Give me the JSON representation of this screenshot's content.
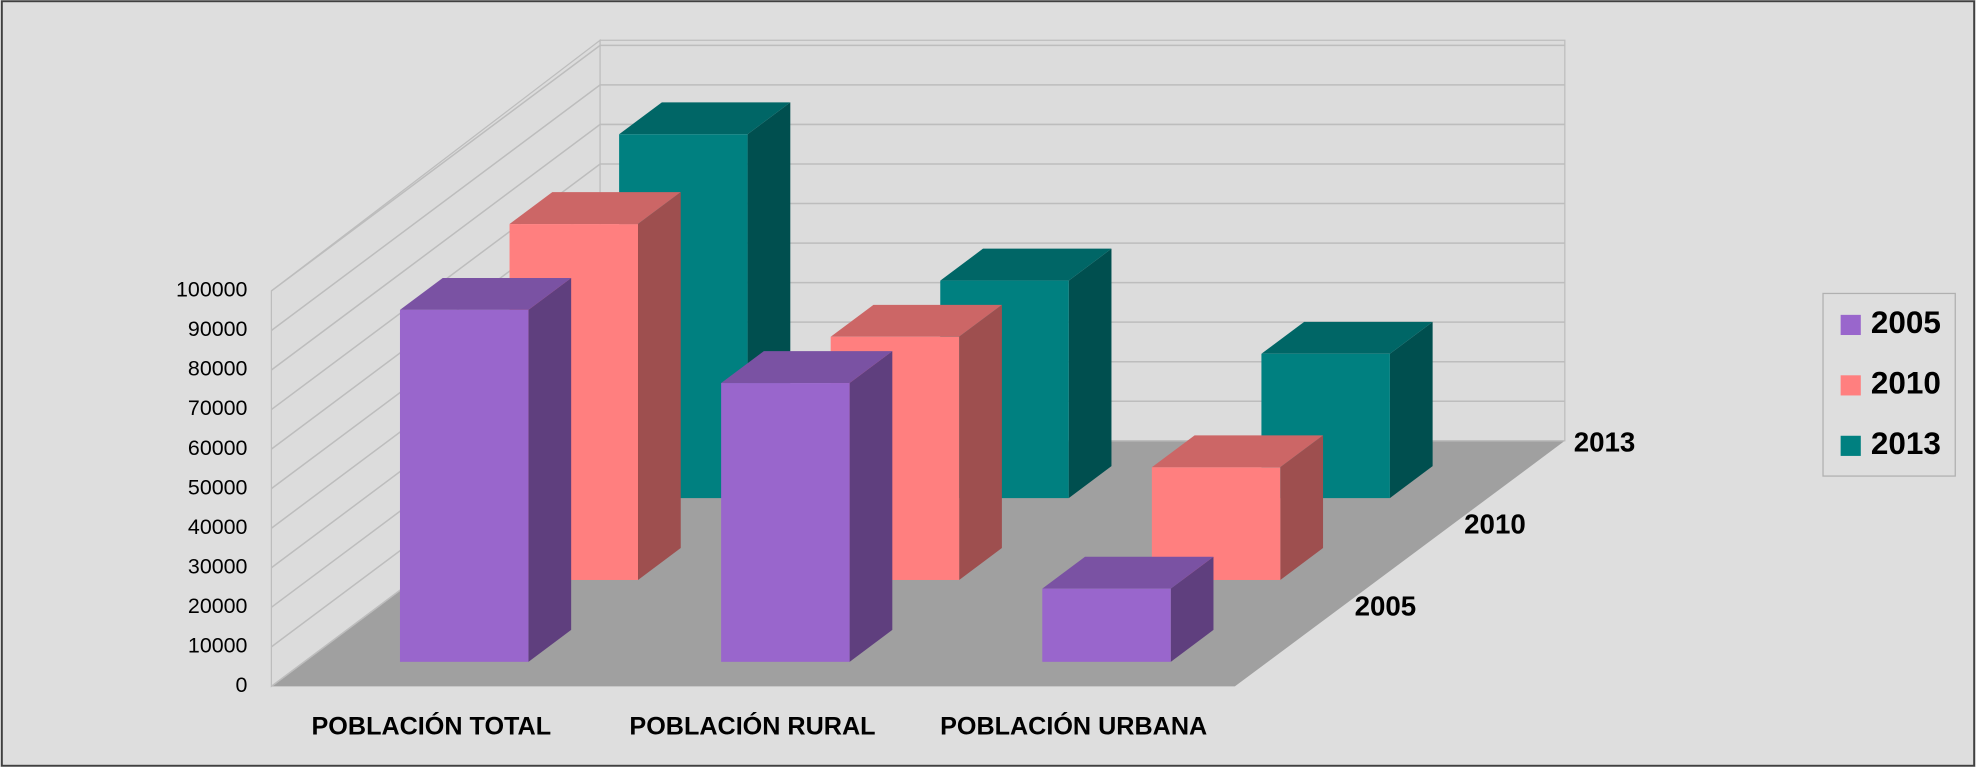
{
  "chart_data": {
    "type": "bar3d",
    "categories": [
      "POBLACIÓN TOTAL",
      "POBLACIÓN RURAL",
      "POBLACIÓN URBANA"
    ],
    "series": [
      {
        "name": "2005",
        "color": "#9966cc",
        "values": [
          89000,
          70500,
          18500
        ]
      },
      {
        "name": "2010",
        "color": "#ff7f7f",
        "values": [
          90000,
          61500,
          28500
        ]
      },
      {
        "name": "2013",
        "color": "#008080",
        "values": [
          92000,
          55000,
          36500
        ]
      }
    ],
    "ylim": [
      0,
      100000
    ],
    "yticks": [
      0,
      10000,
      20000,
      30000,
      40000,
      50000,
      60000,
      70000,
      80000,
      90000,
      100000
    ],
    "grid": true,
    "legend": "right"
  }
}
